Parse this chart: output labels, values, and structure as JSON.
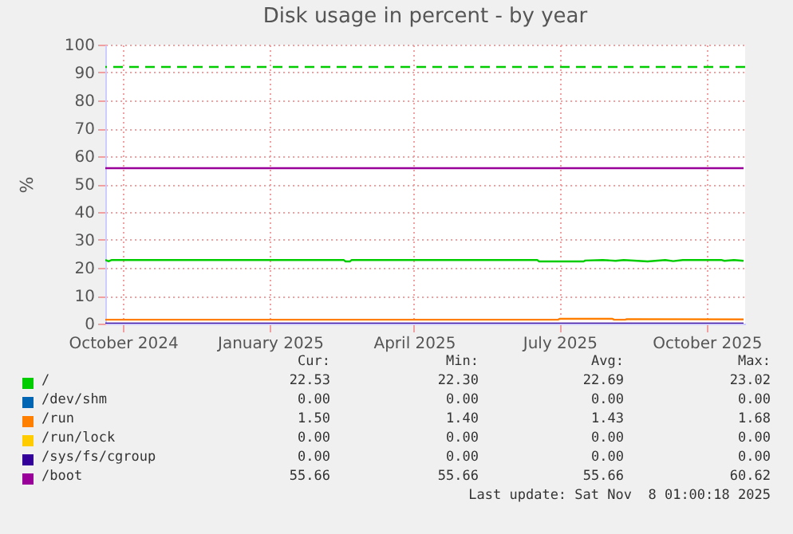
{
  "chart_data": {
    "type": "line",
    "title": "Disk usage in percent - by year",
    "ylabel": "%",
    "xlim": [
      "2024-09-20",
      "2025-10-25"
    ],
    "xticks": [
      {
        "value": "2024-10-01",
        "label": "October 2024"
      },
      {
        "value": "2025-01-01",
        "label": "January 2025"
      },
      {
        "value": "2025-04-01",
        "label": "April 2025"
      },
      {
        "value": "2025-07-01",
        "label": "July 2025"
      },
      {
        "value": "2025-10-01",
        "label": "October 2025"
      }
    ],
    "ylim": [
      0,
      100
    ],
    "yticks": [
      0,
      10,
      20,
      30,
      40,
      50,
      60,
      70,
      80,
      90,
      100
    ],
    "grid": true,
    "legend": "bottom",
    "marker": "none",
    "line_style": "solid",
    "series": [
      {
        "name": "/",
        "color": "#00cc00",
        "x": [
          "2024-09-20",
          "2024-09-22",
          "2024-09-24",
          "2025-02-16",
          "2025-02-17",
          "2025-02-20",
          "2025-02-21",
          "2025-06-17",
          "2025-06-18",
          "2025-07-16",
          "2025-07-17",
          "2025-07-28",
          "2025-08-05",
          "2025-08-10",
          "2025-08-25",
          "2025-09-05",
          "2025-09-10",
          "2025-09-16",
          "2025-10-10",
          "2025-10-12",
          "2025-10-18",
          "2025-10-24"
        ],
        "values": [
          22.8,
          22.3,
          22.8,
          22.8,
          22.3,
          22.3,
          22.8,
          22.8,
          22.3,
          22.3,
          22.6,
          22.8,
          22.5,
          22.8,
          22.3,
          22.8,
          22.4,
          22.8,
          22.8,
          22.5,
          22.8,
          22.5
        ]
      },
      {
        "name": "/dev/shm",
        "color": "#0066b3"
      },
      {
        "name": "/run",
        "color": "#ff8000",
        "x": [
          "2024-09-20",
          "2025-06-30",
          "2025-07-01",
          "2025-08-03",
          "2025-08-04",
          "2025-08-11",
          "2025-08-12",
          "2025-10-24"
        ],
        "values": [
          1.4,
          1.4,
          1.7,
          1.7,
          1.4,
          1.4,
          1.6,
          1.5
        ]
      },
      {
        "name": "/run/lock",
        "color": "#ffcc00"
      },
      {
        "name": "/sys/fs/cgroup",
        "color": "#330099",
        "x": [
          "2024-09-20",
          "2025-10-24"
        ],
        "values": [
          0,
          0
        ]
      },
      {
        "name": "/boot",
        "color": "#990099",
        "x": [
          "2024-09-20",
          "2025-10-24"
        ],
        "values": [
          55.7,
          55.7
        ]
      }
    ],
    "ref_lines": [
      {
        "axis": "y",
        "value": 92,
        "label": null,
        "color": "#00cc00",
        "line_style": "dashed"
      }
    ],
    "annotations": [
      "Cur:",
      "Min:",
      "Avg:",
      "Max:",
      "22.53",
      "22.30",
      "22.69",
      "23.02",
      "0.00",
      "0.00",
      "0.00",
      "0.00",
      "1.50",
      "1.40",
      "1.43",
      "1.68",
      "0.00",
      "0.00",
      "0.00",
      "0.00",
      "0.00",
      "0.00",
      "0.00",
      "0.00",
      "55.66",
      "55.66",
      "55.66",
      "60.62",
      "Last update: Sat Nov  8 01:00:18 2025"
    ]
  }
}
